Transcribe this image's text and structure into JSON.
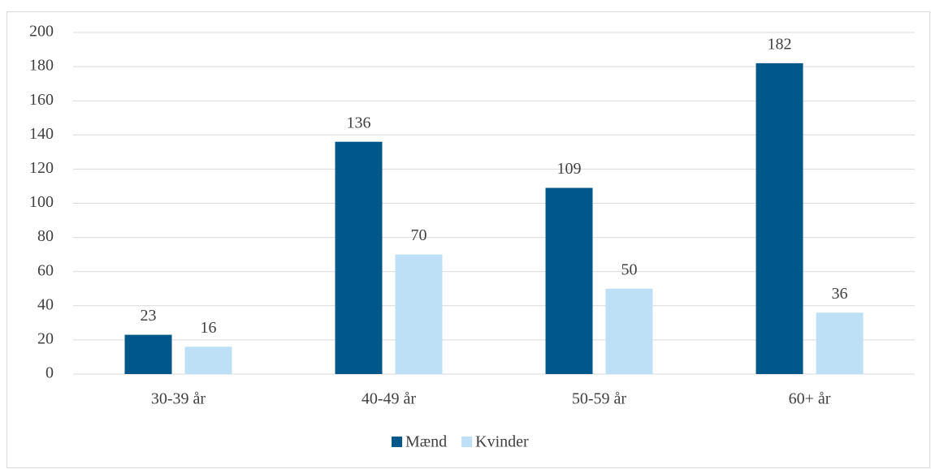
{
  "chart_data": {
    "type": "bar",
    "categories": [
      "30-39 år",
      "40-49 år",
      "50-59 år",
      "60+ år"
    ],
    "series": [
      {
        "name": "Mænd",
        "color": "#00588a",
        "values": [
          23,
          136,
          109,
          182
        ]
      },
      {
        "name": "Kvinder",
        "color": "#bde0f7",
        "values": [
          16,
          70,
          50,
          36
        ]
      }
    ],
    "ylim": [
      0,
      200
    ],
    "yticks": [
      0,
      20,
      40,
      60,
      80,
      100,
      120,
      140,
      160,
      180,
      200
    ],
    "grid": true,
    "legend": "bottom"
  }
}
